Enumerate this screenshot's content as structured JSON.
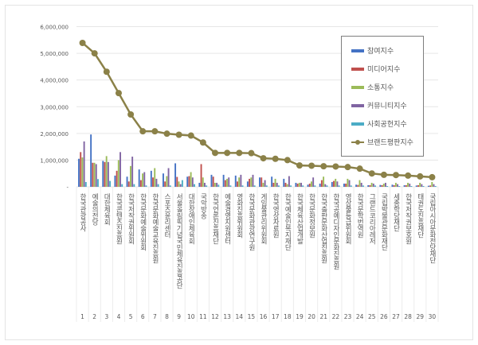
{
  "chart_data": {
    "type": "bar+line",
    "title": "",
    "xlabel": "",
    "ylabel": "",
    "ylim": [
      0,
      6000000
    ],
    "yticks": [
      "-",
      "1,000,000",
      "2,000,000",
      "3,000,000",
      "4,000,000",
      "5,000,000",
      "6,000,000"
    ],
    "grid": true,
    "legend_position": "upper right (inside)",
    "categories": [
      "한국관광공사",
      "예술의전당",
      "대한체육회",
      "한국콘텐츠진흥원",
      "한국저작권위원회",
      "한국문화예술위원회",
      "한국문화예술교육진흥원",
      "스포츠윤리센터",
      "서울올림픽기념국민체육진흥공단",
      "대한장애인체육회",
      "국악방송",
      "한국언론진흥재단",
      "예술경영지원센터",
      "영화진흥위원회",
      "한국문화관광연구원",
      "게임물관리위원회",
      "한국영상자료원",
      "한국예술인복지재단",
      "한국체육산업개발",
      "한국문화정보원",
      "한국출판문화산업진흥원",
      "한국공예디자인문화진흥원",
      "영상물등급위원회",
      "한국문학번역원",
      "그랜드코리아레저",
      "국립박물관문화재단",
      "세종학당재단",
      "한국저작권보호원",
      "태권도진흥재단",
      "국립아시아문화전당재단"
    ],
    "ranks": [
      "1",
      "2",
      "3",
      "4",
      "5",
      "6",
      "7",
      "8",
      "9",
      "10",
      "11",
      "12",
      "13",
      "14",
      "15",
      "16",
      "17",
      "18",
      "19",
      "20",
      "21",
      "22",
      "23",
      "24",
      "25",
      "26",
      "27",
      "28",
      "29",
      "30"
    ],
    "series": [
      {
        "name": "참여지수",
        "type": "bar",
        "color": "#4472c4",
        "values": [
          1050000,
          1960000,
          970000,
          420000,
          380000,
          650000,
          600000,
          500000,
          880000,
          380000,
          150000,
          450000,
          450000,
          420000,
          200000,
          350000,
          380000,
          300000,
          150000,
          80000,
          120000,
          180000,
          120000,
          80000,
          60000,
          70000,
          80000,
          60000,
          50000,
          40000
        ]
      },
      {
        "name": "미디어지수",
        "type": "bar",
        "color": "#c0504d",
        "values": [
          1300000,
          900000,
          930000,
          600000,
          200000,
          250000,
          350000,
          200000,
          370000,
          400000,
          850000,
          380000,
          250000,
          200000,
          300000,
          350000,
          150000,
          150000,
          120000,
          120000,
          250000,
          220000,
          120000,
          70000,
          60000,
          60000,
          60000,
          60000,
          60000,
          50000
        ]
      },
      {
        "name": "소통지수",
        "type": "bar",
        "color": "#9bbb59",
        "values": [
          1100000,
          900000,
          1150000,
          1000000,
          780000,
          500000,
          700000,
          400000,
          200000,
          550000,
          350000,
          150000,
          300000,
          350000,
          350000,
          150000,
          300000,
          100000,
          150000,
          200000,
          380000,
          300000,
          300000,
          250000,
          150000,
          120000,
          150000,
          150000,
          150000,
          180000
        ]
      },
      {
        "name": "커뮤니티지수",
        "type": "bar",
        "color": "#8064a2",
        "values": [
          1700000,
          850000,
          930000,
          1300000,
          1130000,
          550000,
          300000,
          700000,
          100000,
          350000,
          150000,
          150000,
          350000,
          450000,
          450000,
          250000,
          150000,
          400000,
          150000,
          350000,
          100000,
          200000,
          250000,
          150000,
          120000,
          150000,
          100000,
          120000,
          100000,
          100000
        ]
      },
      {
        "name": "사회공헌지수",
        "type": "bar",
        "color": "#4bacc6",
        "values": [
          180000,
          290000,
          220000,
          100000,
          100000,
          50000,
          100000,
          50000,
          250000,
          100000,
          50000,
          80000,
          50000,
          50000,
          50000,
          50000,
          50000,
          50000,
          50000,
          50000,
          50000,
          50000,
          50000,
          50000,
          50000,
          30000,
          30000,
          30000,
          30000,
          30000
        ]
      },
      {
        "name": "브랜드평판지수",
        "type": "line",
        "color": "#8b8148",
        "values": [
          5390000,
          5000000,
          4310000,
          3510000,
          2710000,
          2080000,
          2080000,
          1990000,
          1950000,
          1920000,
          1660000,
          1270000,
          1270000,
          1270000,
          1260000,
          1070000,
          1050000,
          1000000,
          800000,
          790000,
          770000,
          760000,
          740000,
          680000,
          500000,
          450000,
          440000,
          420000,
          390000,
          360000
        ]
      }
    ]
  },
  "legend": {
    "items": [
      {
        "label": "참여지수",
        "color": "#4472c4",
        "kind": "bar"
      },
      {
        "label": "미디어지수",
        "color": "#c0504d",
        "kind": "bar"
      },
      {
        "label": "소통지수",
        "color": "#9bbb59",
        "kind": "bar"
      },
      {
        "label": "커뮤니티지수",
        "color": "#8064a2",
        "kind": "bar"
      },
      {
        "label": "사회공헌지수",
        "color": "#4bacc6",
        "kind": "bar"
      },
      {
        "label": "브랜드평판지수",
        "color": "#8b8148",
        "kind": "line"
      }
    ]
  }
}
